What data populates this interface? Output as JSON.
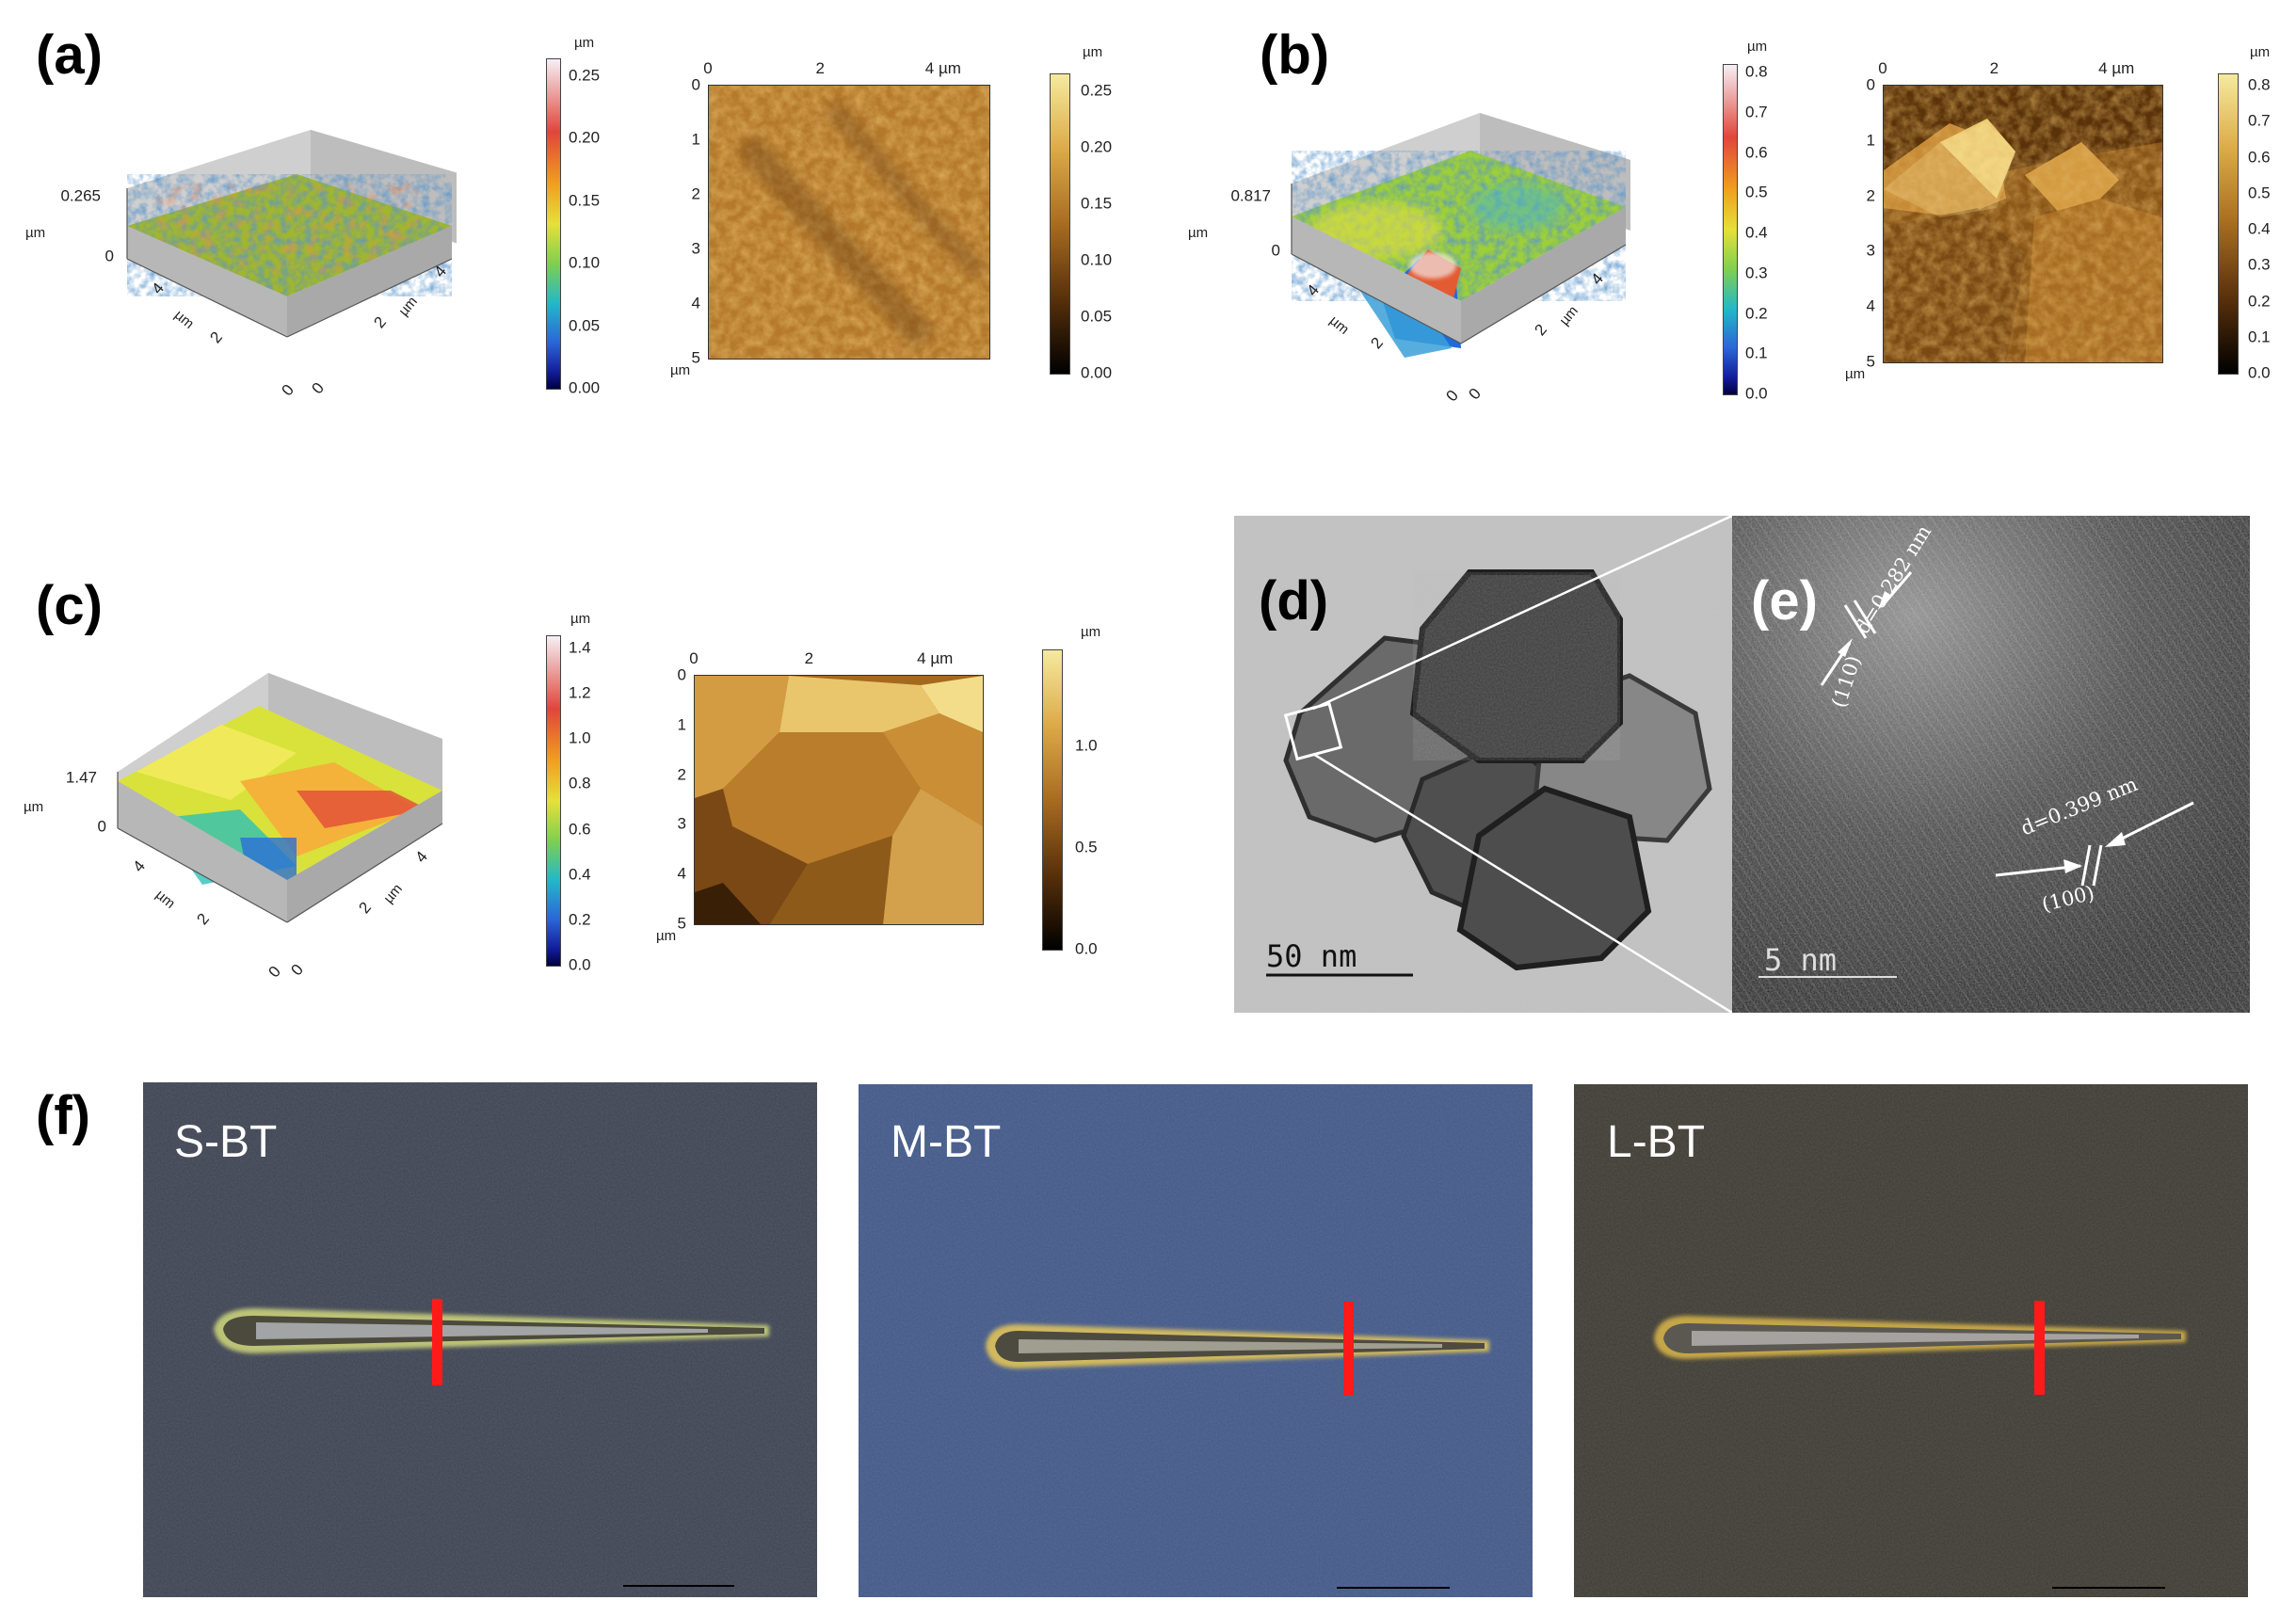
{
  "panels": {
    "a": {
      "label": "(a)",
      "surface3d": {
        "zmax_label": "0.265",
        "zmin_label": "0",
        "axis_unit": "µm",
        "x_ticks": [
          "0",
          "2",
          "4"
        ],
        "y_ticks": [
          "0",
          "2",
          "4"
        ],
        "x_unit": "µm",
        "y_unit": "µm"
      },
      "cbar3d": {
        "unit": "µm",
        "ticks": [
          "0.25",
          "0.20",
          "0.15",
          "0.10",
          "0.05",
          "0.00"
        ]
      },
      "map": {
        "x_ticks": [
          "0",
          "2",
          "4 µm"
        ],
        "y_ticks": [
          "0",
          "1",
          "2",
          "3",
          "4",
          "5"
        ],
        "y_unit": "µm"
      },
      "cbar2d": {
        "unit": "µm",
        "ticks": [
          "0.25",
          "0.20",
          "0.15",
          "0.10",
          "0.05",
          "0.00"
        ]
      }
    },
    "b": {
      "label": "(b)",
      "surface3d": {
        "zmax_label": "0.817",
        "zmin_label": "0",
        "axis_unit": "µm",
        "x_ticks": [
          "0",
          "2",
          "4"
        ],
        "y_ticks": [
          "0",
          "2",
          "4"
        ],
        "x_unit": "µm",
        "y_unit": "µm"
      },
      "cbar3d": {
        "unit": "µm",
        "ticks": [
          "0.8",
          "0.7",
          "0.6",
          "0.5",
          "0.4",
          "0.3",
          "0.2",
          "0.1",
          "0.0"
        ]
      },
      "map": {
        "x_ticks": [
          "0",
          "2",
          "4 µm"
        ],
        "y_ticks": [
          "0",
          "1",
          "2",
          "3",
          "4",
          "5"
        ],
        "y_unit": "µm"
      },
      "cbar2d": {
        "unit": "µm",
        "ticks": [
          "0.8",
          "0.7",
          "0.6",
          "0.5",
          "0.4",
          "0.3",
          "0.2",
          "0.1",
          "0.0"
        ]
      }
    },
    "c": {
      "label": "(c)",
      "surface3d": {
        "zmax_label": "1.47",
        "zmin_label": "0",
        "axis_unit": "µm",
        "x_ticks": [
          "0",
          "2",
          "4"
        ],
        "y_ticks": [
          "0",
          "2",
          "4"
        ],
        "x_unit": "µm",
        "y_unit": "µm"
      },
      "cbar3d": {
        "unit": "µm",
        "ticks": [
          "1.4",
          "1.2",
          "1.0",
          "0.8",
          "0.6",
          "0.4",
          "0.2",
          "0.0"
        ]
      },
      "map": {
        "x_ticks": [
          "0",
          "2",
          "4 µm"
        ],
        "y_ticks": [
          "0",
          "1",
          "2",
          "3",
          "4",
          "5"
        ],
        "y_unit": "µm"
      },
      "cbar2d": {
        "unit": "µm",
        "ticks": [
          "1.0",
          "0.5",
          "0.0"
        ]
      }
    },
    "d": {
      "label": "(d)",
      "scale_bar": "50 nm"
    },
    "e": {
      "label": "(e)",
      "scale_bar": "5 nm",
      "annotations": [
        "d=0.282 nm",
        "(110)",
        "d=0.399 nm",
        "(100)"
      ]
    },
    "f": {
      "label": "(f)",
      "samples": [
        "S-BT",
        "M-BT",
        "L-BT"
      ]
    }
  },
  "colors": {
    "jet_colorbar": [
      "#f5f0f5",
      "#e14b3b",
      "#f0a21e",
      "#e8e23c",
      "#8fd14f",
      "#29b9c8",
      "#2c6fd6",
      "#15209a",
      "#000050"
    ],
    "afm_colorbar": [
      "#f4e89c",
      "#d9a646",
      "#a56a1f",
      "#5a320b",
      "#000000"
    ],
    "scratch_mark": "#ff1a1a"
  }
}
